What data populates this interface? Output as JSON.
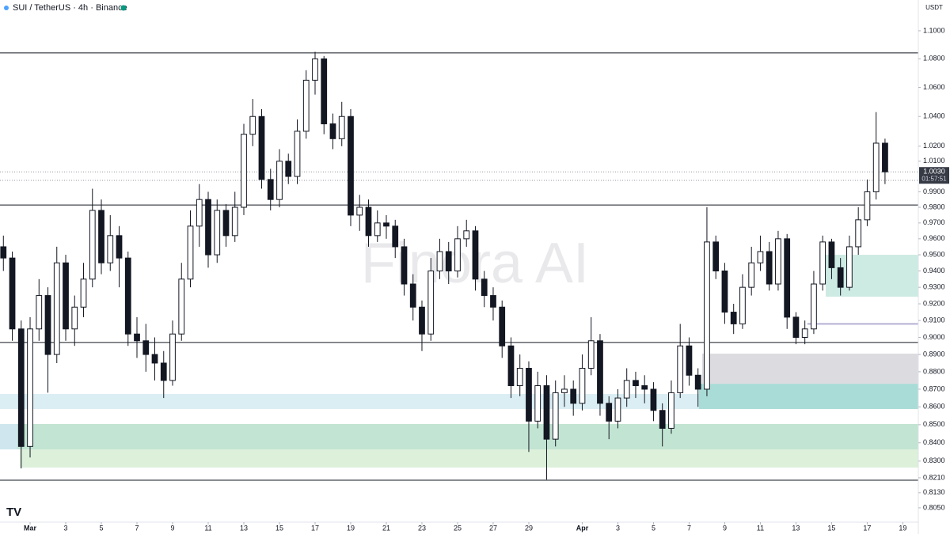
{
  "chart_data": {
    "type": "candlestick",
    "title": "SUI / TetherUS · 4h · Binance",
    "currency": "USDT",
    "watermark": "Finora AI",
    "log_scale": true,
    "xlim": [
      -1.69,
      49.87
    ],
    "ylim": [
      0.7975,
      1.1224
    ],
    "yticks": [
      {
        "value": 1.1,
        "label": "1.1000"
      },
      {
        "value": 1.08,
        "label": "1.0800"
      },
      {
        "value": 1.06,
        "label": "1.0600"
      },
      {
        "value": 1.04,
        "label": "1.0400"
      },
      {
        "value": 1.02,
        "label": "1.0200"
      },
      {
        "value": 1.01,
        "label": "1.0100"
      },
      {
        "value": 0.99,
        "label": "0.9900"
      },
      {
        "value": 0.98,
        "label": "0.9800"
      },
      {
        "value": 0.97,
        "label": "0.9700"
      },
      {
        "value": 0.96,
        "label": "0.9600"
      },
      {
        "value": 0.95,
        "label": "0.9500"
      },
      {
        "value": 0.94,
        "label": "0.9400"
      },
      {
        "value": 0.93,
        "label": "0.9300"
      },
      {
        "value": 0.92,
        "label": "0.9200"
      },
      {
        "value": 0.91,
        "label": "0.9100"
      },
      {
        "value": 0.9,
        "label": "0.9000"
      },
      {
        "value": 0.89,
        "label": "0.8900"
      },
      {
        "value": 0.88,
        "label": "0.8800"
      },
      {
        "value": 0.87,
        "label": "0.8700"
      },
      {
        "value": 0.86,
        "label": "0.8600"
      },
      {
        "value": 0.85,
        "label": "0.8500"
      },
      {
        "value": 0.84,
        "label": "0.8400"
      },
      {
        "value": 0.83,
        "label": "0.8300"
      },
      {
        "value": 0.821,
        "label": "0.8210"
      },
      {
        "value": 0.813,
        "label": "0.8130"
      },
      {
        "value": 0.805,
        "label": "0.8050"
      }
    ],
    "xticks": [
      {
        "value": 0,
        "label": "Mar"
      },
      {
        "value": 2,
        "label": "3"
      },
      {
        "value": 4,
        "label": "5"
      },
      {
        "value": 6,
        "label": "7"
      },
      {
        "value": 8,
        "label": "9"
      },
      {
        "value": 10,
        "label": "11"
      },
      {
        "value": 12,
        "label": "13"
      },
      {
        "value": 14,
        "label": "15"
      },
      {
        "value": 16,
        "label": "17"
      },
      {
        "value": 18,
        "label": "19"
      },
      {
        "value": 20,
        "label": "21"
      },
      {
        "value": 22,
        "label": "23"
      },
      {
        "value": 24,
        "label": "25"
      },
      {
        "value": 26,
        "label": "27"
      },
      {
        "value": 28,
        "label": "29"
      },
      {
        "value": 31,
        "label": "Apr"
      },
      {
        "value": 33,
        "label": "3"
      },
      {
        "value": 35,
        "label": "5"
      },
      {
        "value": 37,
        "label": "7"
      },
      {
        "value": 39,
        "label": "9"
      },
      {
        "value": 41,
        "label": "11"
      },
      {
        "value": 43,
        "label": "13"
      },
      {
        "value": 45,
        "label": "15"
      },
      {
        "value": 47,
        "label": "17"
      },
      {
        "value": 49,
        "label": "19"
      }
    ],
    "up_color": "#ffffff",
    "down_color": "#131722",
    "x": [
      -1.5,
      -1,
      -0.5,
      0,
      0.5,
      1,
      1.5,
      2,
      2.5,
      3,
      3.5,
      4,
      4.5,
      5,
      5.5,
      6,
      6.5,
      7,
      7.5,
      8,
      8.5,
      9,
      9.5,
      10,
      10.5,
      11,
      11.5,
      12,
      12.5,
      13,
      13.5,
      14,
      14.5,
      15,
      15.5,
      16,
      16.5,
      17,
      17.5,
      18,
      18.5,
      19,
      19.5,
      20,
      20.5,
      21,
      21.5,
      22,
      22.5,
      23,
      23.5,
      24,
      24.5,
      25,
      25.5,
      26,
      26.5,
      27,
      27.5,
      28,
      28.5,
      29,
      29.5,
      30,
      30.5,
      31,
      31.5,
      32,
      32.5,
      33,
      33.5,
      34,
      34.5,
      35,
      35.5,
      36,
      36.5,
      37,
      37.5,
      38,
      38.5,
      39,
      39.5,
      40,
      40.5,
      41,
      41.5,
      42,
      42.5,
      43,
      43.5,
      44,
      44.5,
      45,
      45.5,
      46,
      46.5,
      47,
      47.5,
      48
    ],
    "open": [
      0.955,
      0.948,
      0.905,
      0.838,
      0.905,
      0.925,
      0.89,
      0.945,
      0.905,
      0.918,
      0.935,
      0.978,
      0.945,
      0.962,
      0.948,
      0.902,
      0.898,
      0.89,
      0.885,
      0.875,
      0.902,
      0.935,
      0.968,
      0.985,
      0.95,
      0.978,
      0.962,
      0.98,
      1.028,
      1.04,
      0.998,
      0.985,
      1.01,
      1.0,
      1.03,
      1.065,
      1.08,
      1.035,
      1.025,
      1.04,
      0.975,
      0.98,
      0.962,
      0.97,
      0.968,
      0.955,
      0.932,
      0.918,
      0.902,
      0.94,
      0.952,
      0.94,
      0.96,
      0.965,
      0.935,
      0.925,
      0.918,
      0.895,
      0.872,
      0.882,
      0.852,
      0.872,
      0.842,
      0.868,
      0.87,
      0.862,
      0.882,
      0.898,
      0.862,
      0.852,
      0.865,
      0.875,
      0.872,
      0.87,
      0.858,
      0.848,
      0.868,
      0.895,
      0.878,
      0.87,
      0.958,
      0.94,
      0.915,
      0.908,
      0.93,
      0.945,
      0.952,
      0.932,
      0.96,
      0.912,
      0.9,
      0.905,
      0.932,
      0.958,
      0.942,
      0.93,
      0.955,
      0.972,
      0.99,
      1.022
    ],
    "high": [
      0.962,
      0.952,
      0.91,
      0.912,
      0.935,
      0.93,
      0.955,
      0.95,
      0.925,
      0.945,
      0.992,
      0.985,
      0.975,
      0.968,
      0.952,
      0.912,
      0.908,
      0.9,
      0.892,
      0.91,
      0.945,
      0.978,
      0.995,
      0.99,
      0.985,
      0.982,
      0.99,
      1.035,
      1.052,
      1.045,
      1.005,
      1.018,
      1.015,
      1.038,
      1.072,
      1.085,
      1.082,
      1.042,
      1.05,
      1.045,
      0.988,
      0.985,
      0.978,
      0.975,
      0.972,
      0.96,
      0.938,
      0.922,
      0.948,
      0.96,
      0.958,
      0.968,
      0.972,
      0.968,
      0.94,
      0.93,
      0.922,
      0.9,
      0.89,
      0.886,
      0.88,
      0.878,
      0.875,
      0.878,
      0.875,
      0.89,
      0.912,
      0.902,
      0.866,
      0.87,
      0.882,
      0.88,
      0.878,
      0.874,
      0.862,
      0.875,
      0.908,
      0.9,
      0.882,
      0.98,
      0.962,
      0.945,
      0.92,
      0.938,
      0.955,
      0.962,
      0.958,
      0.965,
      0.963,
      0.915,
      0.91,
      0.94,
      0.962,
      0.96,
      0.948,
      0.962,
      0.98,
      0.998,
      1.043,
      1.025
    ],
    "low": [
      0.94,
      0.898,
      0.826,
      0.832,
      0.898,
      0.868,
      0.885,
      0.898,
      0.895,
      0.912,
      0.93,
      0.938,
      0.94,
      0.93,
      0.895,
      0.888,
      0.88,
      0.875,
      0.865,
      0.872,
      0.898,
      0.93,
      0.955,
      0.942,
      0.945,
      0.955,
      0.958,
      0.975,
      1.02,
      0.992,
      0.978,
      0.98,
      0.995,
      0.995,
      1.025,
      1.055,
      1.028,
      1.018,
      1.02,
      0.968,
      0.965,
      0.955,
      0.958,
      0.96,
      0.948,
      0.925,
      0.91,
      0.892,
      0.898,
      0.935,
      0.932,
      0.936,
      0.955,
      0.928,
      0.918,
      0.91,
      0.888,
      0.865,
      0.866,
      0.835,
      0.848,
      0.82,
      0.838,
      0.86,
      0.855,
      0.858,
      0.878,
      0.855,
      0.842,
      0.848,
      0.86,
      0.865,
      0.862,
      0.852,
      0.838,
      0.845,
      0.865,
      0.872,
      0.86,
      0.866,
      0.935,
      0.908,
      0.902,
      0.905,
      0.925,
      0.94,
      0.928,
      0.928,
      0.905,
      0.896,
      0.896,
      0.902,
      0.928,
      0.935,
      0.925,
      0.928,
      0.95,
      0.968,
      0.985,
      0.995
    ],
    "close": [
      0.948,
      0.905,
      0.838,
      0.905,
      0.925,
      0.89,
      0.945,
      0.905,
      0.918,
      0.935,
      0.978,
      0.945,
      0.962,
      0.948,
      0.902,
      0.898,
      0.89,
      0.885,
      0.875,
      0.902,
      0.935,
      0.968,
      0.985,
      0.95,
      0.978,
      0.962,
      0.98,
      1.028,
      1.04,
      0.998,
      0.985,
      1.01,
      1.0,
      1.03,
      1.065,
      1.08,
      1.035,
      1.025,
      1.04,
      0.975,
      0.98,
      0.962,
      0.97,
      0.968,
      0.955,
      0.932,
      0.918,
      0.902,
      0.94,
      0.952,
      0.94,
      0.96,
      0.965,
      0.935,
      0.925,
      0.918,
      0.895,
      0.872,
      0.882,
      0.852,
      0.872,
      0.842,
      0.868,
      0.87,
      0.862,
      0.882,
      0.898,
      0.862,
      0.852,
      0.865,
      0.875,
      0.872,
      0.87,
      0.858,
      0.848,
      0.868,
      0.895,
      0.878,
      0.87,
      0.958,
      0.94,
      0.915,
      0.908,
      0.93,
      0.945,
      0.952,
      0.932,
      0.96,
      0.912,
      0.9,
      0.905,
      0.932,
      0.958,
      0.942,
      0.93,
      0.955,
      0.972,
      0.99,
      1.022,
      1.003
    ],
    "levels": [
      1.0842,
      0.9815,
      0.897,
      0.8197
    ],
    "zones": [
      {
        "low": 0.8588,
        "high": 0.8673,
        "x0": -1.69,
        "x1": 49.87,
        "color": "#dbeef3"
      },
      {
        "low": 0.8364,
        "high": 0.8504,
        "x0": -1.69,
        "x1": 49.87,
        "color": "#c2e4d2"
      },
      {
        "low": 0.8265,
        "high": 0.8364,
        "x0": -0.58,
        "x1": 49.87,
        "color": "#dcf0da"
      },
      {
        "low": 0.8364,
        "high": 0.8504,
        "x0": -1.69,
        "x1": -0.72,
        "color": "#cfe6ee"
      },
      {
        "low": 0.8731,
        "high": 0.8905,
        "x0": 37.73,
        "x1": 49.87,
        "color": "#dcdce0"
      },
      {
        "low": 0.8588,
        "high": 0.8731,
        "x0": 37.55,
        "x1": 49.87,
        "color": "#a9dcd6"
      },
      {
        "low": 0.9243,
        "high": 0.95,
        "x0": 44.67,
        "x1": 49.87,
        "color": "#cdebe3"
      },
      {
        "low": 0.9075,
        "high": 0.9085,
        "x0": 43.64,
        "x1": 49.87,
        "color": "#b9b4d6"
      }
    ],
    "price_lines": [
      0.9974
    ],
    "last_price": {
      "value": 1.003,
      "label": "1.0030",
      "countdown": "01:57:51"
    }
  }
}
